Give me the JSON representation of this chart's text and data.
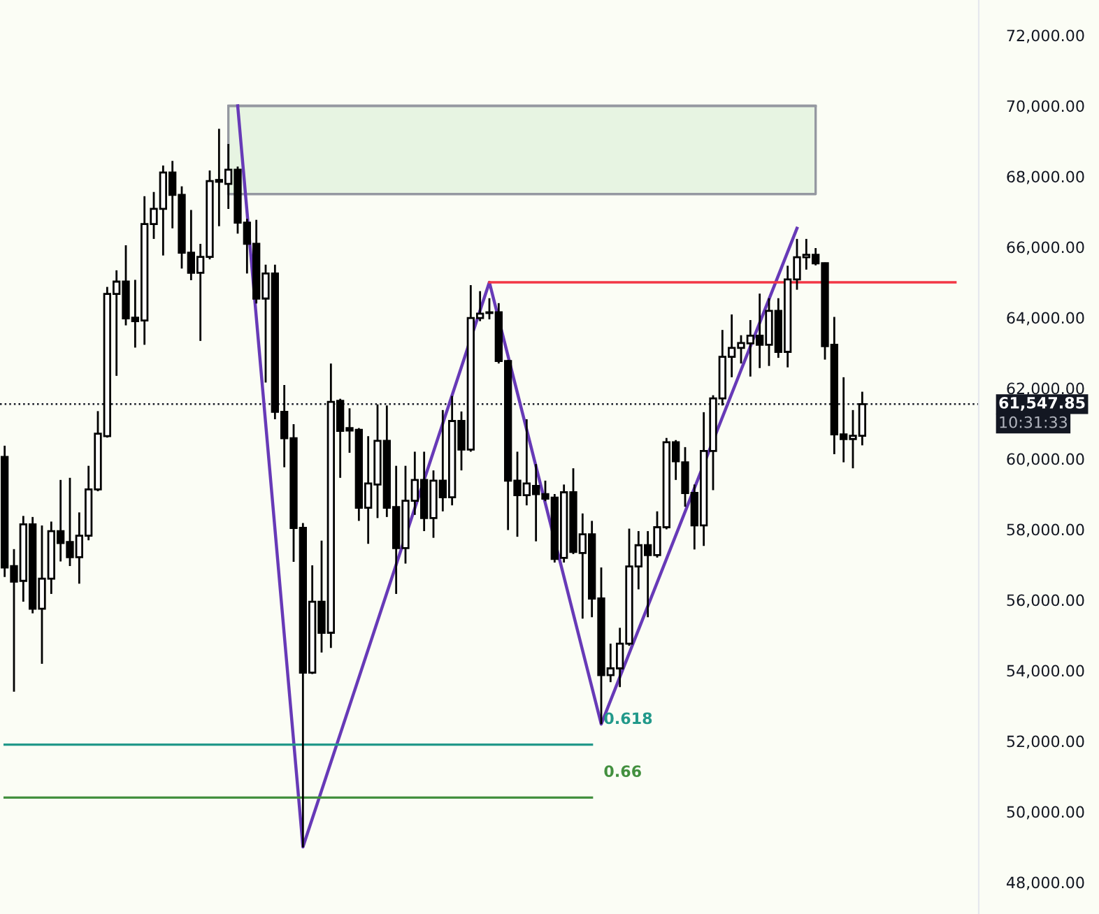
{
  "chart_data": {
    "type": "candlestick",
    "categories": [
      null,
      null,
      null,
      null,
      null,
      null,
      null,
      null,
      null,
      null,
      null,
      null,
      null,
      null,
      null,
      null,
      null,
      null,
      null,
      null,
      null,
      null,
      null,
      null,
      null,
      null,
      null,
      null,
      null,
      null,
      null,
      null,
      null,
      null,
      null,
      null,
      null,
      null,
      null,
      null,
      null,
      null,
      null,
      null,
      null,
      null,
      null,
      null,
      null,
      null,
      null,
      null,
      null,
      null,
      null,
      null,
      null,
      null,
      null,
      null,
      null,
      null,
      null,
      null,
      null,
      null,
      null,
      null,
      null,
      null,
      null,
      null,
      null,
      null,
      null,
      null,
      null,
      null,
      null,
      null,
      null,
      null,
      null,
      null,
      null,
      null,
      null,
      null,
      null,
      null,
      null,
      null,
      null,
      null,
      null,
      null,
      null,
      null,
      null,
      null,
      null,
      null,
      null,
      null,
      null
    ],
    "ohlc": [
      [
        60050,
        60370,
        56650,
        56920
      ],
      [
        56960,
        57440,
        53400,
        56520
      ],
      [
        56540,
        58380,
        55950,
        58140
      ],
      [
        58140,
        58350,
        55620,
        55750
      ],
      [
        55750,
        58110,
        54190,
        56600
      ],
      [
        56600,
        58220,
        56170,
        57950
      ],
      [
        57950,
        59400,
        57090,
        57610
      ],
      [
        57640,
        59460,
        56960,
        57210
      ],
      [
        57210,
        58480,
        56460,
        57820
      ],
      [
        57820,
        59800,
        57690,
        59130
      ],
      [
        59130,
        61350,
        59080,
        60710
      ],
      [
        60640,
        64870,
        60600,
        64670
      ],
      [
        64670,
        65340,
        62350,
        65020
      ],
      [
        65020,
        66050,
        63780,
        63980
      ],
      [
        64000,
        65070,
        63150,
        63900
      ],
      [
        63920,
        67440,
        63230,
        66650
      ],
      [
        66650,
        67560,
        66230,
        67080
      ],
      [
        67080,
        68310,
        65760,
        68110
      ],
      [
        68110,
        68440,
        66530,
        67480
      ],
      [
        67480,
        67720,
        65390,
        65840
      ],
      [
        65840,
        67050,
        65060,
        65270
      ],
      [
        65270,
        66090,
        63340,
        65720
      ],
      [
        65720,
        68170,
        65650,
        67870
      ],
      [
        67850,
        69350,
        66590,
        67900
      ],
      [
        67790,
        68920,
        67080,
        68190
      ],
      [
        68190,
        68280,
        66380,
        66690
      ],
      [
        66690,
        66800,
        65250,
        66090
      ],
      [
        66090,
        66770,
        64400,
        64540
      ],
      [
        64540,
        65500,
        62160,
        65250
      ],
      [
        65250,
        65500,
        61120,
        61330
      ],
      [
        61330,
        62090,
        59760,
        60580
      ],
      [
        60580,
        60980,
        57080,
        58040
      ],
      [
        58040,
        58180,
        48990,
        53940
      ],
      [
        53940,
        56980,
        53900,
        55950
      ],
      [
        55950,
        57680,
        54510,
        55070
      ],
      [
        55070,
        62700,
        54640,
        61610
      ],
      [
        61640,
        61700,
        59460,
        60790
      ],
      [
        60870,
        61430,
        60170,
        60800
      ],
      [
        60820,
        60870,
        58240,
        58610
      ],
      [
        58610,
        60640,
        57590,
        59300
      ],
      [
        59270,
        61540,
        58320,
        60510
      ],
      [
        60510,
        61510,
        58350,
        58610
      ],
      [
        58630,
        59800,
        56170,
        57470
      ],
      [
        57470,
        59800,
        57030,
        58810
      ],
      [
        58810,
        60200,
        58410,
        59400
      ],
      [
        59400,
        60200,
        57950,
        58320
      ],
      [
        58320,
        59670,
        57760,
        59380
      ],
      [
        59380,
        61380,
        58510,
        58910
      ],
      [
        58910,
        61780,
        58680,
        61070
      ],
      [
        61070,
        61340,
        59670,
        60260
      ],
      [
        60260,
        64920,
        60200,
        63990
      ],
      [
        63990,
        64750,
        63900,
        64110
      ],
      [
        64130,
        64550,
        63950,
        64150
      ],
      [
        64150,
        64410,
        62700,
        62770
      ],
      [
        62770,
        62800,
        57980,
        59380
      ],
      [
        59380,
        60200,
        57790,
        58970
      ],
      [
        58970,
        61120,
        58680,
        59300
      ],
      [
        59230,
        59850,
        57660,
        59000
      ],
      [
        59000,
        59380,
        58800,
        58870
      ],
      [
        58900,
        59000,
        57060,
        57160
      ],
      [
        57190,
        59270,
        57060,
        59050
      ],
      [
        59050,
        59730,
        57300,
        57360
      ],
      [
        57330,
        58450,
        55470,
        57860
      ],
      [
        57860,
        58240,
        55510,
        56040
      ],
      [
        56040,
        56920,
        52480,
        53870
      ],
      [
        53870,
        54760,
        53670,
        54060
      ],
      [
        54060,
        55210,
        53530,
        54760
      ],
      [
        54760,
        58020,
        54700,
        56950
      ],
      [
        56950,
        57950,
        56300,
        57550
      ],
      [
        57550,
        57950,
        55510,
        57270
      ],
      [
        57270,
        58510,
        57200,
        58060
      ],
      [
        58060,
        60590,
        58000,
        60470
      ],
      [
        60470,
        60530,
        59400,
        59930
      ],
      [
        59900,
        60330,
        58640,
        59030
      ],
      [
        59030,
        59270,
        57430,
        58110
      ],
      [
        58110,
        61320,
        57530,
        60220
      ],
      [
        60220,
        61800,
        59110,
        61710
      ],
      [
        61710,
        63650,
        61510,
        62890
      ],
      [
        62890,
        64090,
        62310,
        63140
      ],
      [
        63140,
        63500,
        62700,
        63280
      ],
      [
        63270,
        63930,
        62330,
        63490
      ],
      [
        63490,
        64680,
        62570,
        63230
      ],
      [
        63230,
        64550,
        62630,
        64190
      ],
      [
        64190,
        64550,
        62860,
        63030
      ],
      [
        63030,
        65470,
        62590,
        65080
      ],
      [
        65080,
        66230,
        64790,
        65710
      ],
      [
        65710,
        66230,
        65360,
        65780
      ],
      [
        65780,
        65970,
        65480,
        65540
      ],
      [
        65540,
        65560,
        62810,
        63190
      ],
      [
        63230,
        64020,
        60130,
        60690
      ],
      [
        60690,
        62310,
        59900,
        60560
      ],
      [
        60560,
        61380,
        59730,
        60650
      ],
      [
        60650,
        61900,
        60380,
        61547.85
      ],
      null,
      null,
      null,
      null,
      null,
      null,
      null,
      null,
      null,
      null,
      null,
      null
    ],
    "series": [
      {
        "type": "line",
        "color": "#9598a1",
        "values": [
          null,
          null,
          null,
          null,
          null,
          null,
          null,
          null,
          null,
          null,
          null,
          null,
          null,
          null,
          null,
          null,
          null,
          null,
          null,
          null,
          null,
          null,
          null,
          null,
          70000,
          70000,
          70000,
          70000,
          70000,
          70000,
          70000,
          70000,
          70000,
          70000,
          70000,
          70000,
          70000,
          70000,
          70000,
          70000,
          70000,
          70000,
          70000,
          70000,
          70000,
          70000,
          70000,
          70000,
          70000,
          70000,
          70000,
          70000,
          70000,
          70000,
          70000,
          70000,
          70000,
          70000,
          70000,
          70000,
          70000,
          70000,
          70000,
          70000,
          70000,
          70000,
          70000,
          70000,
          70000,
          70000,
          70000,
          70000,
          70000,
          70000,
          70000,
          70000,
          70000,
          70000,
          70000,
          70000,
          70000,
          70000,
          70000,
          70000,
          70000,
          70000,
          70000,
          70000,
          null,
          null,
          null,
          null,
          null,
          null,
          null,
          null,
          null,
          null,
          null,
          null,
          null,
          null,
          null,
          null,
          null
        ],
        "lower": [
          null,
          null,
          null,
          null,
          null,
          null,
          null,
          null,
          null,
          null,
          null,
          null,
          null,
          null,
          null,
          null,
          null,
          null,
          null,
          null,
          null,
          null,
          null,
          null,
          67500,
          67500,
          67500,
          67500,
          67500,
          67500,
          67500,
          67500,
          67500,
          67500,
          67500,
          67500,
          67500,
          67500,
          67500,
          67500,
          67500,
          67500,
          67500,
          67500,
          67500,
          67500,
          67500,
          67500,
          67500,
          67500,
          67500,
          67500,
          67500,
          67500,
          67500,
          67500,
          67500,
          67500,
          67500,
          67500,
          67500,
          67500,
          67500,
          67500,
          67500,
          67500,
          67500,
          67500,
          67500,
          67500,
          67500,
          67500,
          67500,
          67500,
          67500,
          67500,
          67500,
          67500,
          67500,
          67500,
          67500,
          67500,
          67500,
          67500,
          67500,
          67500,
          67500,
          67500,
          null,
          null,
          null,
          null,
          null,
          null,
          null,
          null,
          null,
          null,
          null,
          null,
          null,
          null,
          null,
          null,
          null
        ],
        "upper": [
          null,
          null,
          null,
          null,
          null,
          null,
          null,
          null,
          null,
          null,
          null,
          null,
          null,
          null,
          null,
          null,
          null,
          null,
          null,
          null,
          null,
          null,
          null,
          null,
          70000,
          70000,
          70000,
          70000,
          70000,
          70000,
          70000,
          70000,
          70000,
          70000,
          70000,
          70000,
          70000,
          70000,
          70000,
          70000,
          70000,
          70000,
          70000,
          70000,
          70000,
          70000,
          70000,
          70000,
          70000,
          70000,
          70000,
          70000,
          70000,
          70000,
          70000,
          70000,
          70000,
          70000,
          70000,
          70000,
          70000,
          70000,
          70000,
          70000,
          70000,
          70000,
          70000,
          70000,
          70000,
          70000,
          70000,
          70000,
          70000,
          70000,
          70000,
          70000,
          70000,
          70000,
          70000,
          70000,
          70000,
          70000,
          70000,
          70000,
          70000,
          70000,
          70000,
          70000,
          null,
          null,
          null,
          null,
          null,
          null,
          null,
          null,
          null,
          null,
          null,
          null,
          null,
          null,
          null,
          null,
          null
        ]
      },
      {
        "type": "line",
        "color": "#673ab7",
        "values": [
          null,
          null,
          null,
          null,
          null,
          null,
          null,
          null,
          null,
          null,
          null,
          null,
          null,
          null,
          null,
          null,
          null,
          null,
          null,
          null,
          null,
          null,
          null,
          null,
          null,
          70000,
          null,
          null,
          null,
          null,
          null,
          null,
          49000,
          null,
          null,
          null,
          null,
          null,
          null,
          null,
          null,
          null,
          null,
          null,
          null,
          null,
          null,
          null,
          null,
          null,
          null,
          null,
          65000,
          null,
          null,
          null,
          null,
          null,
          null,
          null,
          null,
          null,
          null,
          null,
          52480,
          null,
          null,
          null,
          null,
          null,
          null,
          null,
          null,
          null,
          null,
          null,
          null,
          null,
          null,
          null,
          null,
          null,
          null,
          null,
          null,
          66530,
          null,
          null,
          null,
          null,
          null,
          null,
          null,
          null,
          null,
          null,
          null,
          null,
          null,
          null,
          null,
          null,
          null,
          null,
          null
        ]
      },
      {
        "type": "line",
        "color": "#f23645",
        "values": [
          null,
          null,
          null,
          null,
          null,
          null,
          null,
          null,
          null,
          null,
          null,
          null,
          null,
          null,
          null,
          null,
          null,
          null,
          null,
          null,
          null,
          null,
          null,
          null,
          null,
          null,
          null,
          null,
          null,
          null,
          null,
          null,
          null,
          null,
          null,
          null,
          null,
          null,
          null,
          null,
          null,
          null,
          null,
          null,
          null,
          null,
          null,
          null,
          null,
          null,
          null,
          null,
          65000,
          65000,
          65000,
          65000,
          65000,
          65000,
          65000,
          65000,
          65000,
          65000,
          65000,
          65000,
          65000,
          65000,
          65000,
          65000,
          65000,
          65000,
          65000,
          65000,
          65000,
          65000,
          65000,
          65000,
          65000,
          65000,
          65000,
          65000,
          65000,
          65000,
          65000,
          65000,
          65000,
          65000,
          65000,
          65000,
          65000,
          65000,
          65000,
          65000,
          65000,
          65000,
          65000,
          65000,
          65000,
          65000,
          65000,
          65000,
          65000,
          65000,
          65000,
          null,
          null
        ]
      },
      {
        "type": "line",
        "color": "#22998a",
        "name": "0.618",
        "values": [
          51900,
          51900,
          51900,
          51900,
          51900,
          51900,
          51900,
          51900,
          51900,
          51900,
          51900,
          51900,
          51900,
          51900,
          51900,
          51900,
          51900,
          51900,
          51900,
          51900,
          51900,
          51900,
          51900,
          51900,
          51900,
          51900,
          51900,
          51900,
          51900,
          51900,
          51900,
          51900,
          51900,
          51900,
          51900,
          51900,
          51900,
          51900,
          51900,
          51900,
          51900,
          51900,
          51900,
          51900,
          51900,
          51900,
          51900,
          51900,
          51900,
          51900,
          51900,
          51900,
          51900,
          51900,
          51900,
          51900,
          51900,
          51900,
          51900,
          51900,
          51900,
          51900,
          51900,
          51900,
          null,
          null,
          null,
          null,
          null,
          null,
          null,
          null,
          null,
          null,
          null,
          null,
          null,
          null,
          null,
          null,
          null,
          null,
          null,
          null,
          null,
          null,
          null,
          null,
          null,
          null,
          null,
          null,
          null,
          null,
          null,
          null,
          null,
          null,
          null,
          null,
          null,
          null,
          null,
          null,
          null
        ]
      },
      {
        "type": "line",
        "color": "#43903f",
        "name": "0.66",
        "values": [
          50400,
          50400,
          50400,
          50400,
          50400,
          50400,
          50400,
          50400,
          50400,
          50400,
          50400,
          50400,
          50400,
          50400,
          50400,
          50400,
          50400,
          50400,
          50400,
          50400,
          50400,
          50400,
          50400,
          50400,
          50400,
          50400,
          50400,
          50400,
          50400,
          50400,
          50400,
          50400,
          50400,
          50400,
          50400,
          50400,
          50400,
          50400,
          50400,
          50400,
          50400,
          50400,
          50400,
          50400,
          50400,
          50400,
          50400,
          50400,
          50400,
          50400,
          50400,
          50400,
          50400,
          50400,
          50400,
          50400,
          50400,
          50400,
          50400,
          50400,
          50400,
          50400,
          50400,
          50400,
          null,
          null,
          null,
          null,
          null,
          null,
          null,
          null,
          null,
          null,
          null,
          null,
          null,
          null,
          null,
          null,
          null,
          null,
          null,
          null,
          null,
          null,
          null,
          null,
          null,
          null,
          null,
          null,
          null,
          null,
          null,
          null,
          null,
          null,
          null,
          null,
          null,
          null,
          null,
          null,
          null
        ]
      }
    ],
    "ref_lines": [
      {
        "axis": "y",
        "value": 61547.85,
        "label": "61,547.85",
        "color": "#131722",
        "line_style": "dotted"
      }
    ],
    "annotations": [
      "10:31:33"
    ],
    "ylim": [
      47100,
      73000
    ],
    "yticks": [
      {
        "value": 48000,
        "label": "48,000.00"
      },
      {
        "value": 50000,
        "label": "50,000.00"
      },
      {
        "value": 52000,
        "label": "52,000.00"
      },
      {
        "value": 54000,
        "label": "54,000.00"
      },
      {
        "value": 56000,
        "label": "56,000.00"
      },
      {
        "value": 58000,
        "label": "58,000.00"
      },
      {
        "value": 60000,
        "label": "60,000.00"
      },
      {
        "value": 62000,
        "label": "62,000.00"
      },
      {
        "value": 64000,
        "label": "64,000.00"
      },
      {
        "value": 66000,
        "label": "66,000.00"
      },
      {
        "value": 68000,
        "label": "68,000.00"
      },
      {
        "value": 70000,
        "label": "70,000.00"
      },
      {
        "value": 72000,
        "label": "72,000.00"
      }
    ],
    "tick_labels": "y"
  }
}
